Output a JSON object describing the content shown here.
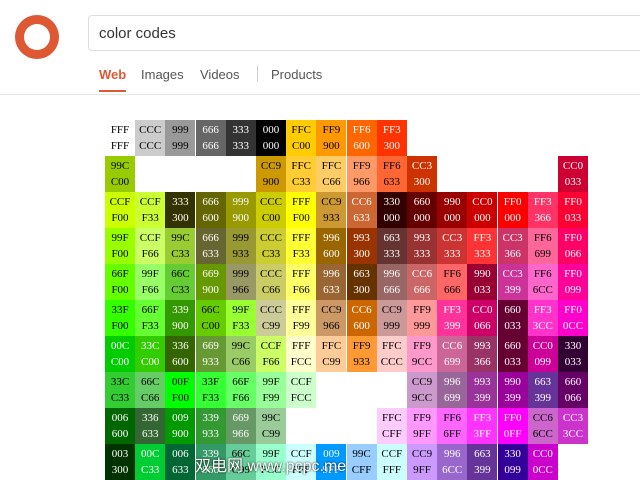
{
  "header": {
    "search_query": "color codes",
    "tabs": [
      "Web",
      "Images",
      "Videos",
      "Products"
    ]
  },
  "grid": {
    "rows": [
      [
        [
          "FFF",
          "FFF"
        ],
        [
          "CCC",
          "CCC"
        ],
        [
          "999",
          "999"
        ],
        [
          "666",
          "666"
        ],
        [
          "333",
          "333"
        ],
        [
          "000",
          "000"
        ],
        [
          "FFC",
          "C00"
        ],
        [
          "FF9",
          "900"
        ],
        [
          "FF6",
          "600"
        ],
        [
          "FF3",
          "300"
        ],
        null,
        null,
        null,
        null,
        null,
        null
      ],
      [
        [
          "99C",
          "C00"
        ],
        null,
        null,
        null,
        null,
        [
          "CC9",
          "900"
        ],
        [
          "FFC",
          "C33"
        ],
        [
          "FFC",
          "C66"
        ],
        [
          "FF9",
          "966"
        ],
        [
          "FF6",
          "633"
        ],
        [
          "CC3",
          "300"
        ],
        null,
        null,
        null,
        null,
        [
          "CC0",
          "033"
        ]
      ],
      [
        [
          "CCF",
          "F00"
        ],
        [
          "CCF",
          "F33"
        ],
        [
          "333",
          "300"
        ],
        [
          "666",
          "600"
        ],
        [
          "999",
          "900"
        ],
        [
          "CCC",
          "C00"
        ],
        [
          "FFF",
          "F00"
        ],
        [
          "CC9",
          "933"
        ],
        [
          "CC6",
          "633"
        ],
        [
          "330",
          "000"
        ],
        [
          "660",
          "000"
        ],
        [
          "990",
          "000"
        ],
        [
          "CC0",
          "000"
        ],
        [
          "FF0",
          "000"
        ],
        [
          "FF3",
          "366"
        ],
        [
          "FF0",
          "033"
        ]
      ],
      [
        [
          "99F",
          "F00"
        ],
        [
          "CCF",
          "F66"
        ],
        [
          "99C",
          "C33"
        ],
        [
          "666",
          "633"
        ],
        [
          "999",
          "933"
        ],
        [
          "CCC",
          "C33"
        ],
        [
          "FFF",
          "F33"
        ],
        [
          "996",
          "600"
        ],
        [
          "993",
          "300"
        ],
        [
          "663",
          "333"
        ],
        [
          "993",
          "333"
        ],
        [
          "CC3",
          "333"
        ],
        [
          "FF3",
          "333"
        ],
        [
          "CC3",
          "366"
        ],
        [
          "FF6",
          "699"
        ],
        [
          "FF0",
          "066"
        ]
      ],
      [
        [
          "66F",
          "F00"
        ],
        [
          "99F",
          "F66"
        ],
        [
          "66C",
          "C33"
        ],
        [
          "669",
          "900"
        ],
        [
          "999",
          "966"
        ],
        [
          "CCC",
          "C66"
        ],
        [
          "FFF",
          "F66"
        ],
        [
          "996",
          "633"
        ],
        [
          "663",
          "300"
        ],
        [
          "996",
          "666"
        ],
        [
          "CC6",
          "666"
        ],
        [
          "FF6",
          "666"
        ],
        [
          "990",
          "033"
        ],
        [
          "CC3",
          "399"
        ],
        [
          "FF6",
          "6CC"
        ],
        [
          "FF0",
          "099"
        ]
      ],
      [
        [
          "33F",
          "F00"
        ],
        [
          "66F",
          "F33"
        ],
        [
          "339",
          "900"
        ],
        [
          "66C",
          "C00"
        ],
        [
          "99F",
          "F33"
        ],
        [
          "CCC",
          "C99"
        ],
        [
          "FFF",
          "F99"
        ],
        [
          "CC9",
          "966"
        ],
        [
          "CC6",
          "600"
        ],
        [
          "CC9",
          "999"
        ],
        [
          "FF9",
          "999"
        ],
        [
          "FF3",
          "399"
        ],
        [
          "CC0",
          "066"
        ],
        [
          "660",
          "033"
        ],
        [
          "FF3",
          "3CC"
        ],
        [
          "FF0",
          "0CC"
        ]
      ],
      [
        [
          "00C",
          "C00"
        ],
        [
          "33C",
          "C00"
        ],
        [
          "336",
          "600"
        ],
        [
          "669",
          "933"
        ],
        [
          "99C",
          "C66"
        ],
        [
          "CCF",
          "F66"
        ],
        [
          "FFF",
          "FCC"
        ],
        [
          "FFC",
          "C99"
        ],
        [
          "FF9",
          "933"
        ],
        [
          "FFC",
          "CCC"
        ],
        [
          "FF9",
          "9CC"
        ],
        [
          "CC6",
          "699"
        ],
        [
          "993",
          "366"
        ],
        [
          "660",
          "033"
        ],
        [
          "CC0",
          "099"
        ],
        [
          "330",
          "033"
        ]
      ],
      [
        [
          "33C",
          "C33"
        ],
        [
          "66C",
          "C66"
        ],
        [
          "00F",
          "F00"
        ],
        [
          "33F",
          "F33"
        ],
        [
          "66F",
          "F66"
        ],
        [
          "99F",
          "F99"
        ],
        [
          "CCF",
          "FCC"
        ],
        null,
        null,
        null,
        [
          "CC9",
          "9CC"
        ],
        [
          "996",
          "699"
        ],
        [
          "993",
          "399"
        ],
        [
          "990",
          "399"
        ],
        [
          "663",
          "399"
        ],
        [
          "660",
          "066"
        ]
      ],
      [
        [
          "006",
          "600"
        ],
        [
          "336",
          "633"
        ],
        [
          "009",
          "900"
        ],
        [
          "339",
          "933"
        ],
        [
          "669",
          "966"
        ],
        [
          "99C",
          "C99"
        ],
        null,
        null,
        null,
        [
          "FFC",
          "CFF"
        ],
        [
          "FF9",
          "9FF"
        ],
        [
          "FF6",
          "6FF"
        ],
        [
          "FF3",
          "3FF"
        ],
        [
          "FF0",
          "0FF"
        ],
        [
          "CC6",
          "6CC"
        ],
        [
          "CC3",
          "3CC"
        ]
      ],
      [
        [
          "003",
          "300"
        ],
        [
          "00C",
          "C33"
        ],
        [
          "006",
          "633"
        ],
        [
          "339",
          "966"
        ],
        [
          "66C",
          "C99"
        ],
        [
          "99F",
          "FCC"
        ],
        [
          "CCF",
          "FFF"
        ],
        [
          "009",
          "9FF"
        ],
        [
          "99C",
          "CFF"
        ],
        [
          "CCF",
          "FFF"
        ],
        [
          "CC9",
          "9FF"
        ],
        [
          "996",
          "6CC"
        ],
        [
          "663",
          "399"
        ],
        [
          "330",
          "099"
        ],
        [
          "CC0",
          "0CC"
        ],
        null
      ]
    ]
  },
  "watermark": "双电网 www.pcpc.me"
}
